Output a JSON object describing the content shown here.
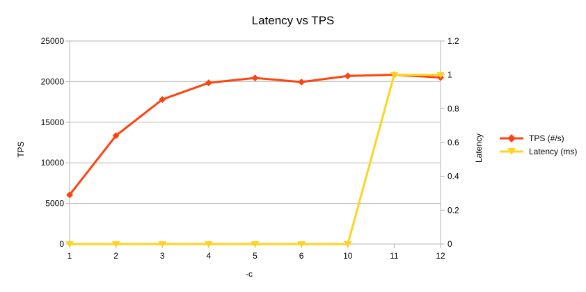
{
  "chart_data": {
    "type": "line",
    "title": "Latency vs TPS",
    "xlabel": "-c",
    "ylabel": "TPS",
    "y2label": "Latency",
    "categories": [
      "1",
      "2",
      "3",
      "4",
      "5",
      "6",
      "10",
      "11",
      "12"
    ],
    "ylim": [
      0,
      25000
    ],
    "yticks": [
      0,
      5000,
      10000,
      15000,
      20000,
      25000
    ],
    "y2lim": [
      0,
      1.2
    ],
    "y2ticks": [
      "0",
      "0.2",
      "0.4",
      "0.6",
      "0.8",
      "1",
      "1.2"
    ],
    "grid": "horizontal",
    "legend_position": "right",
    "series": [
      {
        "name": "TPS (#/s)",
        "axis": "left",
        "color": "#ff420e",
        "marker": "diamond",
        "values": [
          6050,
          13350,
          17800,
          19850,
          20450,
          19950,
          20700,
          20850,
          20500
        ]
      },
      {
        "name": "Latency (ms)",
        "axis": "right",
        "color": "#ffd320",
        "marker": "triangle-down",
        "values": [
          0,
          0,
          0,
          0,
          0,
          0,
          0,
          1,
          1
        ]
      }
    ]
  }
}
